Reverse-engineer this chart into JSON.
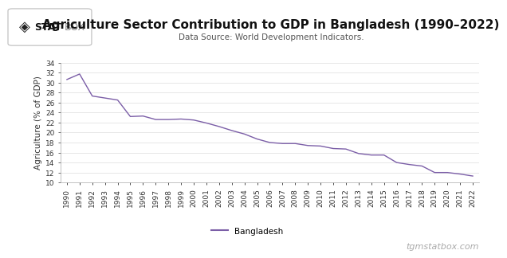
{
  "title": "Agriculture Sector Contribution to GDP in Bangladesh (1990–2022)",
  "subtitle": "Data Source: World Development Indicators.",
  "ylabel": "Agriculture (% of GDP)",
  "line_color": "#7B5EA7",
  "background_color": "#ffffff",
  "plot_bg_color": "#ffffff",
  "years": [
    1990,
    1991,
    1992,
    1993,
    1994,
    1995,
    1996,
    1997,
    1998,
    1999,
    2000,
    2001,
    2002,
    2003,
    2004,
    2005,
    2006,
    2007,
    2008,
    2009,
    2010,
    2011,
    2012,
    2013,
    2014,
    2015,
    2016,
    2017,
    2018,
    2019,
    2020,
    2021,
    2022
  ],
  "values": [
    30.6,
    31.7,
    27.3,
    26.9,
    26.5,
    23.2,
    23.3,
    22.6,
    22.6,
    22.7,
    22.5,
    21.9,
    21.2,
    20.4,
    19.7,
    18.7,
    18.0,
    17.8,
    17.8,
    17.4,
    17.3,
    16.8,
    16.7,
    15.8,
    15.5,
    15.5,
    14.0,
    13.6,
    13.3,
    12.0,
    12.0,
    11.7,
    11.3
  ],
  "ylim": [
    10,
    34
  ],
  "yticks": [
    10,
    12,
    14,
    16,
    18,
    20,
    22,
    24,
    26,
    28,
    30,
    32,
    34
  ],
  "legend_label": "Bangladesh",
  "watermark": "tgmstatbox.com",
  "title_fontsize": 11,
  "subtitle_fontsize": 7.5,
  "tick_fontsize": 6.5,
  "ylabel_fontsize": 7.5,
  "legend_fontsize": 7.5,
  "watermark_fontsize": 8,
  "grid_color": "#dddddd",
  "tick_color": "#333333",
  "border_color": "#aaaaaa",
  "logo_box_color": "#f0f0f0",
  "logo_border_color": "#bbbbbb"
}
